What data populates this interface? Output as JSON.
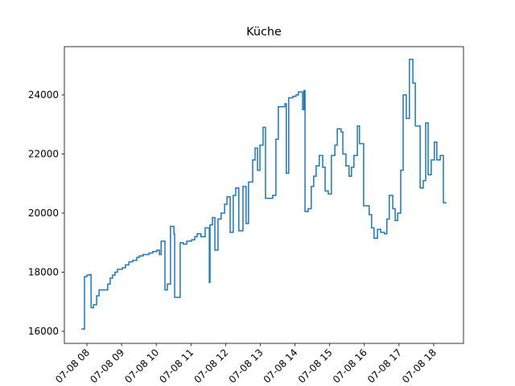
{
  "chart_data": {
    "type": "line",
    "step": "post",
    "title": "Küche",
    "color": "#1f77b4",
    "x": [
      7.84,
      7.93,
      8.0,
      8.07,
      8.12,
      8.19,
      8.28,
      8.35,
      8.6,
      8.67,
      8.74,
      8.81,
      8.88,
      9.02,
      9.11,
      9.21,
      9.32,
      9.44,
      9.51,
      9.62,
      9.79,
      9.9,
      10.02,
      10.09,
      10.14,
      10.25,
      10.32,
      10.41,
      10.51,
      10.53,
      10.69,
      10.78,
      10.88,
      11.02,
      11.11,
      11.18,
      11.29,
      11.41,
      11.53,
      11.55,
      11.62,
      11.69,
      11.78,
      11.87,
      11.97,
      12.04,
      12.13,
      12.22,
      12.29,
      12.38,
      12.5,
      12.59,
      12.66,
      12.78,
      12.85,
      12.92,
      12.99,
      13.08,
      13.15,
      13.36,
      13.45,
      13.52,
      13.71,
      13.75,
      13.82,
      13.94,
      14.03,
      14.1,
      14.22,
      14.26,
      14.29,
      14.38,
      14.47,
      14.54,
      14.61,
      14.7,
      14.8,
      14.87,
      14.96,
      15.05,
      15.15,
      15.22,
      15.33,
      15.38,
      15.47,
      15.56,
      15.63,
      15.7,
      15.8,
      15.86,
      15.98,
      16.14,
      16.21,
      16.28,
      16.38,
      16.47,
      16.58,
      16.65,
      16.72,
      16.82,
      16.89,
      16.96,
      17.05,
      17.12,
      17.21,
      17.3,
      17.4,
      17.47,
      17.61,
      17.7,
      17.77,
      17.84,
      17.93,
      18.02,
      18.09,
      18.19,
      18.28,
      18.37
    ],
    "values": [
      16080,
      17850,
      17900,
      17920,
      16800,
      16900,
      17200,
      17400,
      17600,
      17800,
      17900,
      18000,
      18100,
      18150,
      18250,
      18350,
      18400,
      18500,
      18550,
      18600,
      18650,
      18700,
      18750,
      18600,
      19050,
      17400,
      17600,
      19550,
      19300,
      17150,
      19000,
      18950,
      19050,
      19100,
      19200,
      19300,
      19200,
      19500,
      17650,
      19600,
      19850,
      18750,
      19800,
      20000,
      20300,
      20550,
      19350,
      20600,
      20850,
      19400,
      20900,
      19650,
      21050,
      21800,
      22200,
      21450,
      22300,
      22900,
      20500,
      20600,
      22500,
      23600,
      23700,
      21350,
      23900,
      23950,
      24000,
      24100,
      23500,
      24150,
      20050,
      20150,
      20900,
      21250,
      21600,
      21950,
      21550,
      20750,
      20650,
      21950,
      22300,
      22850,
      22750,
      22000,
      21600,
      21250,
      21550,
      21950,
      22950,
      22350,
      20250,
      19950,
      19500,
      19150,
      19450,
      19350,
      19300,
      19800,
      20600,
      20150,
      19750,
      20000,
      21450,
      24000,
      23200,
      25200,
      24400,
      22950,
      20850,
      21100,
      23050,
      21300,
      21800,
      22400,
      21800,
      21950,
      20350,
      20350
    ],
    "xlim": [
      7.35,
      18.86
    ],
    "ylim": [
      15592,
      25633
    ],
    "xticks": [
      {
        "value": 8,
        "label": "07-08 08"
      },
      {
        "value": 9,
        "label": "07-08 09"
      },
      {
        "value": 10,
        "label": "07-08 10"
      },
      {
        "value": 11,
        "label": "07-08 11"
      },
      {
        "value": 12,
        "label": "07-08 12"
      },
      {
        "value": 13,
        "label": "07-08 13"
      },
      {
        "value": 14,
        "label": "07-08 14"
      },
      {
        "value": 15,
        "label": "07-08 15"
      },
      {
        "value": 16,
        "label": "07-08 16"
      },
      {
        "value": 17,
        "label": "07-08 17"
      },
      {
        "value": 18,
        "label": "07-08 18"
      }
    ],
    "yticks": [
      16000,
      18000,
      20000,
      22000,
      24000
    ]
  }
}
